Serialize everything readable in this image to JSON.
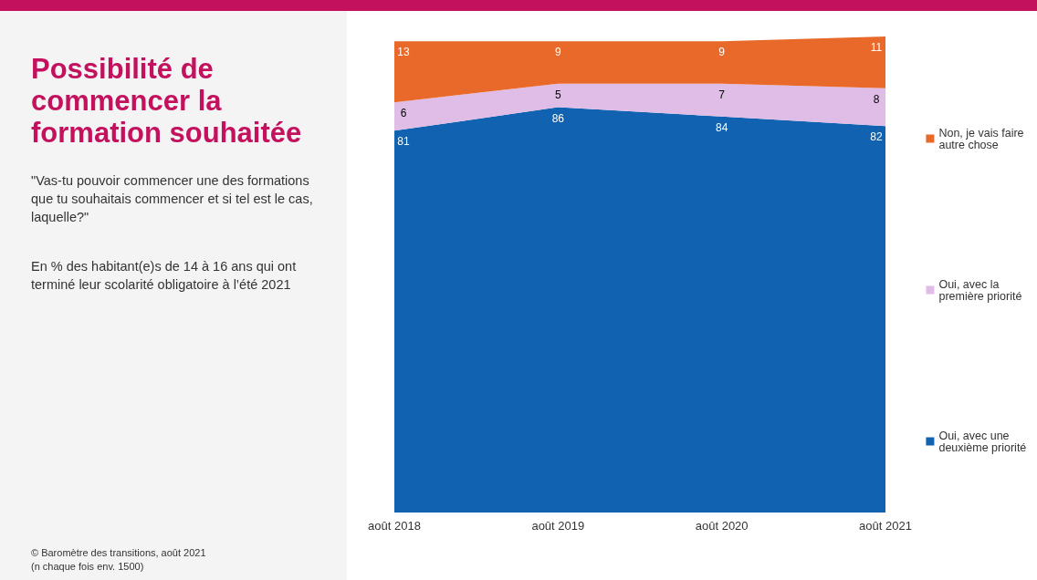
{
  "chart_data": {
    "type": "area",
    "title": "Possibilité de commencer la formation souhaitée",
    "subtitle": "\"Vas-tu pouvoir commencer une des formations que tu souhaitais commencer et si tel est le cas, laquelle?\"",
    "annotations": [
      "En % des habitant(e)s de 14 à 16 ans qui ont terminé leur scolarité obligatoire à l’été 2021",
      "© Baromètre des transitions, août 2021",
      "(n chaque fois env. 1500)"
    ],
    "categories": [
      "août 2018",
      "août 2019",
      "août 2020",
      "août 2021"
    ],
    "stacked": true,
    "data_labels": true,
    "legend": "right",
    "grid": false,
    "tick_labels": "x",
    "series": [
      {
        "name": "Oui, avec une deuxième priorité",
        "color": "#1162b0",
        "values": [
          81,
          86,
          84,
          82
        ]
      },
      {
        "name": "Oui, avec la première priorité",
        "color": "#dfbde6",
        "values": [
          6,
          5,
          7,
          8
        ]
      },
      {
        "name": "Non, je vais faire autre chose",
        "color": "#e8692a",
        "values": [
          13,
          9,
          9,
          11
        ]
      }
    ]
  }
}
